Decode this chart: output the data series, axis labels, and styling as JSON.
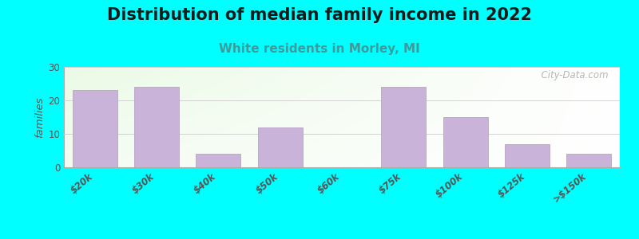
{
  "title": "Distribution of median family income in 2022",
  "subtitle": "White residents in Morley, MI",
  "categories": [
    "$20k",
    "$30k",
    "$40k",
    "$50k",
    "$60k",
    "$75k",
    "$100k",
    "$125k",
    ">$150k"
  ],
  "values": [
    23,
    24,
    4,
    12,
    0,
    24,
    15,
    7,
    4
  ],
  "bar_color": "#c9b3d9",
  "bar_edge_color": "#b09ac0",
  "background_color": "#00ffff",
  "ylabel": "families",
  "ylim": [
    0,
    30
  ],
  "yticks": [
    0,
    10,
    20,
    30
  ],
  "title_fontsize": 15,
  "subtitle_fontsize": 11,
  "subtitle_color": "#3d9b9b",
  "watermark": "  City-Data.com",
  "watermark_color": "#aaaaaa"
}
